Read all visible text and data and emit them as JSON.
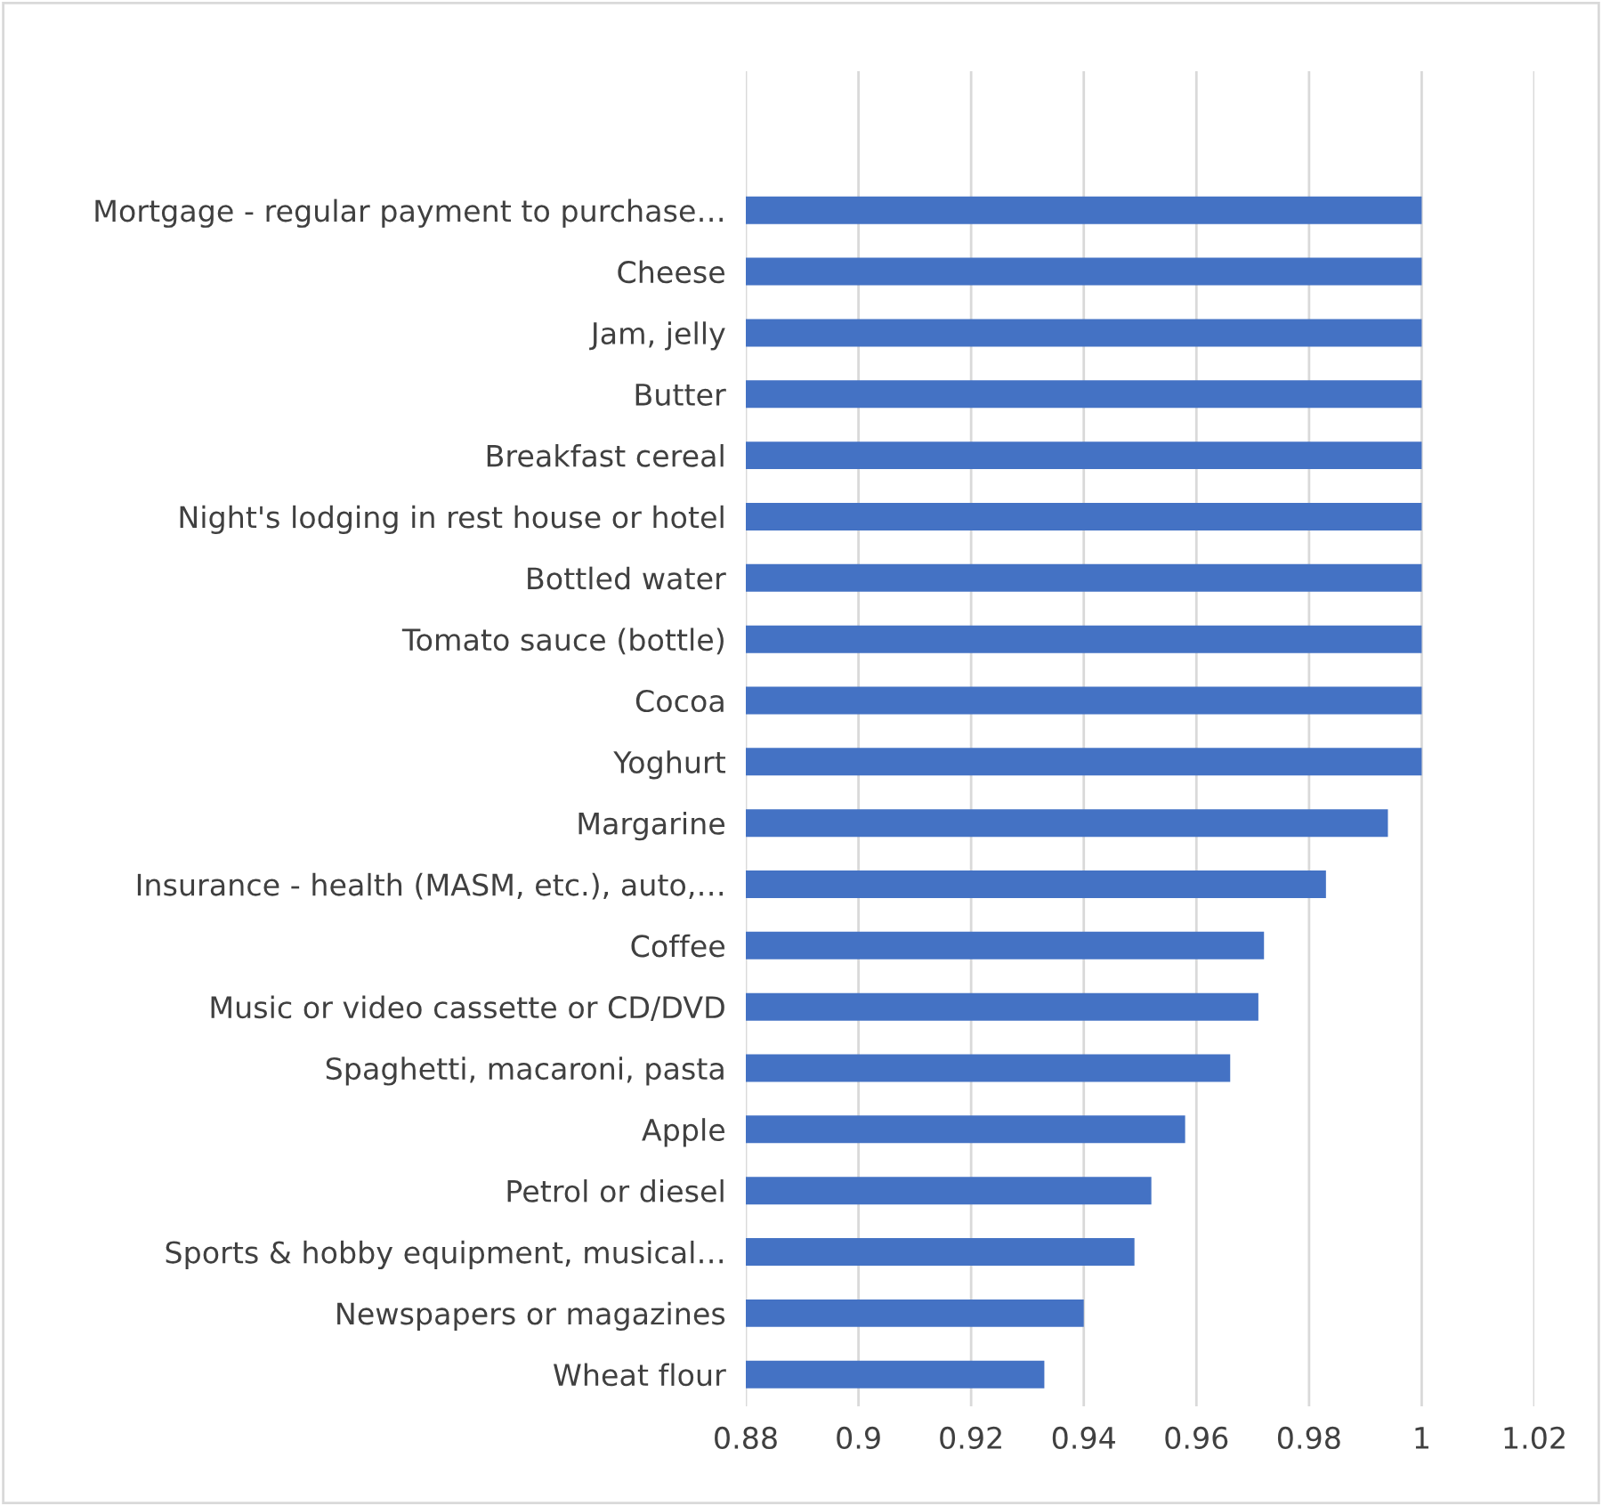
{
  "chart_data": {
    "type": "bar",
    "orientation": "horizontal",
    "categories": [
      "Mortgage - regular payment to purchase…",
      "Cheese",
      "Jam, jelly",
      "Butter",
      "Breakfast cereal",
      "Night's lodging in rest house or hotel",
      "Bottled water",
      "Tomato sauce (bottle)",
      "Cocoa",
      "Yoghurt",
      "Margarine",
      "Insurance - health (MASM, etc.), auto,…",
      "Coffee",
      "Music or video cassette or CD/DVD",
      "Spaghetti, macaroni, pasta",
      "Apple",
      "Petrol or diesel",
      "Sports & hobby equipment, musical…",
      "Newspapers or magazines",
      "Wheat flour"
    ],
    "values": [
      1,
      1,
      1,
      1,
      1,
      1,
      1,
      1,
      1,
      1,
      0.994,
      0.983,
      0.972,
      0.971,
      0.966,
      0.958,
      0.952,
      0.949,
      0.94,
      0.933
    ],
    "color": "#4472c4",
    "xlim": [
      0.88,
      1.02
    ],
    "xticks": [
      0.88,
      0.9,
      0.92,
      0.94,
      0.96,
      0.98,
      1,
      1.02
    ],
    "grid": "x"
  }
}
